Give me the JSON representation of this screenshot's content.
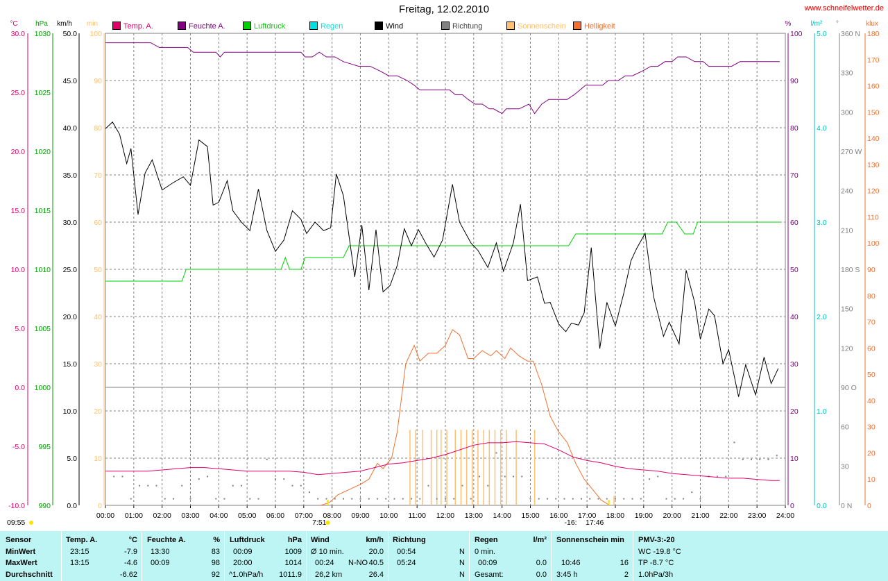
{
  "title": "Freitag, 12.02.2010",
  "site": "www.schneifelwetter.de",
  "axis_units": {
    "temp": "°C",
    "pressure": "hPa",
    "wind": "km/h",
    "sun_min": "min",
    "humidity": "%",
    "rain": "l/m²",
    "direction": "°",
    "klux": "klux"
  },
  "legend": [
    {
      "label": "Temp. A.",
      "color": "#e0006a"
    },
    {
      "label": "Feuchte A.",
      "color": "#800080"
    },
    {
      "label": "Luftdruck",
      "color": "#00d000"
    },
    {
      "label": "Regen",
      "color": "#00e0e0"
    },
    {
      "label": "Wind",
      "color": "#000000"
    },
    {
      "label": "Richtung",
      "color": "#808080"
    },
    {
      "label": "Sonnenschein",
      "color": "#ffc070"
    },
    {
      "label": "Helligkeit",
      "color": "#f07030"
    }
  ],
  "axes": {
    "temp_ticks": [
      "30.0",
      "25.0",
      "20.0",
      "15.0",
      "10.0",
      "5.0",
      "0.0",
      "-5.0",
      "-10.0"
    ],
    "pressure_ticks": [
      "1030",
      "1025",
      "1020",
      "1015",
      "1010",
      "1005",
      "1000",
      "995",
      "990"
    ],
    "wind_ticks": [
      "50.0",
      "45.0",
      "40.0",
      "35.0",
      "30.0",
      "25.0",
      "20.0",
      "15.0",
      "10.0",
      "5.0",
      "0.0"
    ],
    "sun_ticks": [
      "100",
      "90",
      "80",
      "70",
      "60",
      "50",
      "40",
      "30",
      "20",
      "10",
      "0"
    ],
    "humidity_ticks": [
      "100",
      "90",
      "80",
      "70",
      "60",
      "50",
      "40",
      "30",
      "20",
      "10",
      "0"
    ],
    "rain_ticks": [
      "5.0",
      "4.0",
      "3.0",
      "2.0",
      "1.0",
      "0.0"
    ],
    "direction_ticks": [
      "360 N",
      "330",
      "300",
      "270 W",
      "240",
      "210",
      "180 S",
      "150",
      "120",
      "90  O",
      "60",
      "30",
      "0   N"
    ],
    "klux_ticks": [
      "180",
      "170",
      "160",
      "150",
      "140",
      "130",
      "120",
      "110",
      "100",
      "90",
      "80",
      "70",
      "60",
      "50",
      "40",
      "30",
      "20",
      "10",
      "0"
    ],
    "x_ticks": [
      "00:00",
      "01:00",
      "02:00",
      "03:00",
      "04:00",
      "05:00",
      "06:00",
      "07:00",
      "08:00",
      "09:00",
      "10:00",
      "11:00",
      "12:00",
      "13:00",
      "14:00",
      "15:00",
      "16:00",
      "17:00",
      "18:00",
      "19:00",
      "20:00",
      "21:00",
      "22:00",
      "23:00",
      "24:00"
    ]
  },
  "markers": {
    "daylength": "09:55",
    "sunrise": "7:51",
    "sunset": "17:46",
    "moon": "-16:"
  },
  "chart_data": {
    "type": "line",
    "title": "Freitag, 12.02.2010",
    "x_unit": "hours",
    "x_range": [
      0,
      24
    ],
    "series": [
      {
        "name": "Wind",
        "unit": "km/h",
        "color": "#000000",
        "x": [
          0,
          0.25,
          0.5,
          0.75,
          0.9,
          1.15,
          1.4,
          1.65,
          2.0,
          2.4,
          2.75,
          3.0,
          3.3,
          3.6,
          3.8,
          4.0,
          4.3,
          4.5,
          4.8,
          5.1,
          5.4,
          5.7,
          6.0,
          6.3,
          6.6,
          6.9,
          7.1,
          7.4,
          7.7,
          7.95,
          8.15,
          8.4,
          8.8,
          9.05,
          9.3,
          9.55,
          9.8,
          10.05,
          10.3,
          10.55,
          10.8,
          11.05,
          11.3,
          11.6,
          11.9,
          12.25,
          12.5,
          12.9,
          13.15,
          13.5,
          13.8,
          14.05,
          14.4,
          14.65,
          14.9,
          15.25,
          15.5,
          15.7,
          16.0,
          16.25,
          16.45,
          16.7,
          16.9,
          17.15,
          17.45,
          17.7,
          18.0,
          18.3,
          18.55,
          18.75,
          19.05,
          19.35,
          19.7,
          19.9,
          20.25,
          20.5,
          20.8,
          21.0,
          21.3,
          21.5,
          21.8,
          22.0,
          22.35,
          22.6,
          22.95,
          23.25,
          23.5,
          23.75
        ],
        "y": [
          39.9,
          40.6,
          39.3,
          36.2,
          37.8,
          30.8,
          35.2,
          36.6,
          33.4,
          34.2,
          34.8,
          33.9,
          38.7,
          38.0,
          31.8,
          32.1,
          34.4,
          31.2,
          30.0,
          29.1,
          33.5,
          29.1,
          26.9,
          28.1,
          31.2,
          30.3,
          28.8,
          30.0,
          29.1,
          29.4,
          35.1,
          32.8,
          24.2,
          29.7,
          22.8,
          29.2,
          22.6,
          23.3,
          25.4,
          29.3,
          27.5,
          29.2,
          27.8,
          26.3,
          28.1,
          34.0,
          30.0,
          27.8,
          27.0,
          25.2,
          27.8,
          24.8,
          27.8,
          31.9,
          23.8,
          24.2,
          21.4,
          21.5,
          19.2,
          18.4,
          19.3,
          19.1,
          20.4,
          27.3,
          16.6,
          21.5,
          19.0,
          22.5,
          25.9,
          27.2,
          28.8,
          22.1,
          17.9,
          19.4,
          17.1,
          24.9,
          21.5,
          17.6,
          20.8,
          20.1,
          15.0,
          16.5,
          11.5,
          14.9,
          11.7,
          15.7,
          12.9,
          14.5
        ],
        "stats": {
          "min_time": "00:54",
          "max_time": "05:24"
        }
      },
      {
        "name": "Feuchte A.",
        "unit": "%",
        "color": "#800080",
        "x": [
          0,
          1.6,
          1.9,
          2.9,
          3.1,
          3.9,
          4.05,
          4.2,
          6.9,
          7.05,
          7.3,
          7.55,
          7.8,
          8.1,
          8.4,
          8.95,
          9.35,
          9.7,
          10.0,
          10.3,
          10.65,
          10.9,
          11.1,
          12.15,
          12.35,
          12.6,
          12.8,
          13.05,
          13.3,
          13.55,
          13.7,
          14.0,
          14.15,
          14.6,
          14.95,
          15.15,
          15.4,
          15.65,
          15.95,
          16.3,
          16.55,
          16.75,
          16.95,
          17.25,
          17.55,
          17.75,
          18.1,
          18.35,
          18.6,
          18.95,
          19.25,
          19.5,
          19.75,
          20.0,
          20.2,
          20.5,
          20.8,
          21.1,
          21.3,
          21.8,
          22.1,
          22.4,
          23.8
        ],
        "y": [
          98,
          98,
          97,
          97,
          96,
          96,
          95,
          96,
          96,
          95,
          95,
          96,
          95,
          95,
          94,
          93,
          93,
          92,
          91,
          91,
          90,
          89,
          88,
          88,
          87,
          87,
          86,
          85,
          85,
          84,
          84,
          83,
          84,
          84,
          85,
          83,
          85,
          86,
          86,
          86,
          87,
          88,
          89,
          89,
          89,
          90,
          90,
          91,
          91,
          92,
          93,
          93,
          94,
          94,
          95,
          95,
          94,
          94,
          93,
          93,
          93,
          94,
          94
        ]
      },
      {
        "name": "Luftdruck",
        "unit": "hPa",
        "color": "#00d000",
        "x": [
          0,
          2.7,
          2.85,
          6.2,
          6.35,
          6.5,
          6.65,
          6.9,
          7.05,
          8.4,
          8.6,
          16.35,
          16.6,
          19.65,
          19.85,
          20.15,
          20.45,
          20.75,
          20.9,
          23.8
        ],
        "y": [
          1009,
          1009,
          1010,
          1010,
          1011,
          1010,
          1010,
          1010,
          1011,
          1011,
          1012,
          1012,
          1013,
          1013,
          1014,
          1014,
          1013,
          1013,
          1014,
          1014
        ]
      },
      {
        "name": "Temp. A.",
        "unit": "°C",
        "color": "#e0006a",
        "x": [
          0,
          0.5,
          1.0,
          1.5,
          2.0,
          2.5,
          3.0,
          3.5,
          4.0,
          4.5,
          5.0,
          5.5,
          6.0,
          6.5,
          7.0,
          7.5,
          8.0,
          8.5,
          9.0,
          9.5,
          10.0,
          10.5,
          11.0,
          11.5,
          12.0,
          12.5,
          13.0,
          13.5,
          14.0,
          14.5,
          15.0,
          15.5,
          16.0,
          16.5,
          17.0,
          17.5,
          18.0,
          18.5,
          19.0,
          19.5,
          20.0,
          20.5,
          21.0,
          21.5,
          22.0,
          22.5,
          23.0,
          23.5,
          23.8
        ],
        "y": [
          -7.1,
          -7.1,
          -7.1,
          -7.1,
          -7.0,
          -6.9,
          -6.8,
          -6.8,
          -6.9,
          -7.0,
          -7.1,
          -7.1,
          -7.1,
          -7.1,
          -7.2,
          -7.4,
          -7.3,
          -7.2,
          -7.1,
          -6.8,
          -6.5,
          -6.4,
          -6.2,
          -6.0,
          -5.7,
          -5.3,
          -4.9,
          -4.7,
          -4.7,
          -4.6,
          -4.7,
          -4.8,
          -5.3,
          -5.9,
          -6.2,
          -6.4,
          -6.7,
          -6.9,
          -7.0,
          -7.1,
          -7.3,
          -7.4,
          -7.5,
          -7.6,
          -7.7,
          -7.7,
          -7.8,
          -7.9,
          -7.9
        ]
      },
      {
        "name": "Helligkeit",
        "unit": "klux",
        "color": "#f07030",
        "x": [
          7.6,
          7.9,
          8.2,
          8.6,
          9.0,
          9.3,
          9.6,
          9.8,
          10.1,
          10.3,
          10.6,
          10.9,
          11.1,
          11.4,
          11.7,
          12.0,
          12.25,
          12.5,
          12.8,
          13.0,
          13.3,
          13.6,
          13.8,
          14.1,
          14.3,
          14.6,
          14.9,
          15.1,
          15.4,
          15.7,
          16.0,
          16.3,
          16.6,
          16.9,
          17.2,
          17.5,
          17.8
        ],
        "y": [
          0,
          1,
          4,
          6,
          8,
          10,
          16,
          14,
          18,
          28,
          54,
          61,
          55,
          58,
          58,
          61,
          67,
          65,
          56,
          56,
          59,
          57,
          59,
          56,
          60,
          57,
          55,
          55,
          46,
          34,
          28,
          24,
          16,
          10,
          6,
          2,
          0
        ]
      },
      {
        "name": "Sonnenschein",
        "unit": "min",
        "color": "#ffc070",
        "x": [
          10.75,
          10.95,
          11.2,
          11.5,
          11.7,
          11.85,
          12.05,
          12.35,
          12.55,
          12.75,
          12.95,
          13.15,
          13.35,
          13.55,
          13.75,
          13.95,
          14.15,
          14.5,
          15.15,
          17.95
        ],
        "y": [
          16,
          16,
          16,
          16,
          16,
          16,
          16,
          16,
          16,
          16,
          16,
          16,
          16,
          16,
          16,
          16,
          16,
          16,
          16,
          2
        ]
      },
      {
        "name": "Richtung",
        "unit": "°",
        "color": "#808080",
        "x": [
          0.3,
          0.6,
          0.9,
          1.2,
          1.5,
          1.8,
          2.1,
          2.4,
          2.7,
          3.0,
          3.3,
          3.6,
          3.9,
          4.2,
          4.5,
          4.8,
          5.1,
          5.4,
          5.7,
          6.0,
          6.3,
          6.6,
          6.9,
          7.2,
          7.5,
          7.8,
          8.1,
          8.4,
          8.7,
          9.0,
          9.3,
          9.6,
          9.9,
          10.2,
          10.5,
          10.8,
          11.1,
          11.4,
          11.7,
          12.0,
          12.3,
          12.6,
          12.9,
          13.2,
          13.5,
          13.8,
          14.1,
          14.4,
          14.7,
          15.0,
          15.3,
          15.6,
          15.9,
          16.2,
          16.5,
          16.8,
          17.1,
          17.4,
          17.7,
          18.0,
          18.3,
          18.6,
          18.9,
          19.2,
          19.5,
          19.8,
          20.1,
          20.4,
          20.7,
          21.0,
          21.3,
          21.6,
          21.9,
          22.2,
          22.5,
          22.8,
          23.1,
          23.4,
          23.7
        ],
        "y": [
          22,
          22,
          5,
          15,
          15,
          15,
          5,
          5,
          15,
          5,
          20,
          22,
          5,
          5,
          15,
          15,
          5,
          5,
          35,
          20,
          20,
          15,
          15,
          10,
          5,
          5,
          5,
          5,
          5,
          5,
          5,
          5,
          5,
          5,
          5,
          5,
          5,
          15,
          5,
          5,
          5,
          15,
          5,
          22,
          15,
          40,
          22,
          22,
          22,
          5,
          5,
          5,
          5,
          5,
          5,
          5,
          5,
          5,
          5,
          5,
          5,
          5,
          5,
          20,
          22,
          5,
          5,
          5,
          10,
          5,
          22,
          22,
          22,
          48,
          35,
          35,
          35,
          35,
          38
        ]
      }
    ]
  },
  "stats": {
    "labels": {
      "sensor": "Sensor",
      "min": "MinWert",
      "max": "MaxWert",
      "avg": "Durchschnitt"
    },
    "temp": {
      "header": "Temp. A.",
      "unit": "°C",
      "min_time": "23:15",
      "min_val": "-7.9",
      "max_time": "13:15",
      "max_val": "-4.6",
      "avg": "-6.62"
    },
    "hum": {
      "header": "Feuchte A.",
      "unit": "%",
      "min_time": "13:30",
      "min_val": "83",
      "max_time": "00:09",
      "max_val": "98",
      "avg": "92"
    },
    "press": {
      "header": "Luftdruck",
      "unit": "hPa",
      "min_time": "00:09",
      "min_val": "1009",
      "max_time": "20:00",
      "max_val": "1014",
      "avg_label": "^1.0hPa/h",
      "avg": "1011.9"
    },
    "wind": {
      "header": "Wind",
      "unit": "km/h",
      "min_label": "Ø 10 min.",
      "min_val": "20.0",
      "max_time": "00:24",
      "max_dir": "N-NO",
      "max_val": "40.5",
      "avg_label": "26,2 km",
      "avg": "26.4"
    },
    "dir": {
      "header": "Richtung",
      "min_time": "00:54",
      "min_val": "N",
      "max_time": "05:24",
      "max_val": "N",
      "avg": "N"
    },
    "rain": {
      "header": "Regen",
      "unit": "l/m²",
      "min_label": "0 min.",
      "max_time": "00:09",
      "max_val": "0.0",
      "avg_label": "Gesamt:",
      "avg": "0.0"
    },
    "sun": {
      "header": "Sonnenschein min",
      "max_time": "10:46",
      "max_val": "16",
      "avg_label": "3:45 h",
      "avg": "2"
    },
    "pmv": {
      "header": "PMV-3:-20",
      "wc": "WC -19.8 °C",
      "tp": "TP -8.7 °C",
      "trend": "1.0hPa/3h"
    }
  }
}
